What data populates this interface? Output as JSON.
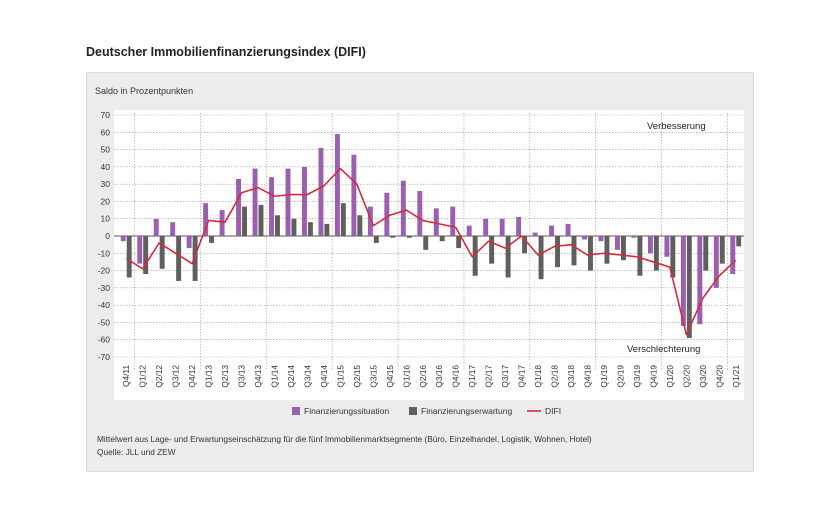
{
  "title": "Deutscher Immobilienfinanzierungsindex (DIFI)",
  "footnote": "Mittelwert aus Lage- und Erwartungseinschätzung für die fünf Immobilienmarktsegmente (Büro, Einzelhandel, Logistik, Wohnen, Hotel)",
  "source": "Quelle: JLL und ZEW",
  "colors": {
    "situation": "#9b5fb0",
    "expectation": "#5f5f5f",
    "difi": "#d62a3c",
    "plot_bg": "#ffffff",
    "panel_bg": "#ececec"
  },
  "chart_data": {
    "type": "bar",
    "ylabel": "Saldo in Prozentpunkten",
    "ylim": [
      -70,
      70
    ],
    "yticks": [
      70,
      60,
      50,
      40,
      30,
      20,
      10,
      0,
      -10,
      -20,
      -30,
      -40,
      -50,
      -60,
      -70
    ],
    "categories": [
      "Q4/11",
      "Q1/12",
      "Q2/12",
      "Q3/12",
      "Q4/12",
      "Q1/13",
      "Q2/13",
      "Q3/13",
      "Q4/13",
      "Q1/14",
      "Q2/14",
      "Q3/14",
      "Q4/14",
      "Q1/15",
      "Q2/15",
      "Q3/15",
      "Q4/15",
      "Q1/16",
      "Q2/16",
      "Q3/16",
      "Q4/16",
      "Q1/17",
      "Q2/17",
      "Q3/17",
      "Q4/17",
      "Q1/18",
      "Q2/18",
      "Q3/18",
      "Q4/18",
      "Q1/19",
      "Q2/19",
      "Q3/19",
      "Q4/19",
      "Q1/20",
      "Q2/20",
      "Q3/20",
      "Q4/20",
      "Q1/21"
    ],
    "series": [
      {
        "name": "Finanzierungssituation",
        "type": "bar",
        "values": [
          -3,
          -16,
          10,
          8,
          -7,
          19,
          15,
          33,
          39,
          34,
          39,
          40,
          51,
          59,
          47,
          17,
          25,
          32,
          26,
          16,
          17,
          6,
          10,
          10,
          11,
          2,
          6,
          7,
          -2,
          -3,
          -8,
          -1,
          -10,
          -12,
          -52,
          -51,
          -30,
          -22
        ]
      },
      {
        "name": "Finanzierungserwartung",
        "type": "bar",
        "values": [
          -24,
          -22,
          -19,
          -26,
          -26,
          -4,
          0,
          17,
          18,
          12,
          10,
          8,
          7,
          19,
          12,
          -4,
          -1,
          -1,
          -8,
          -3,
          -7,
          -23,
          -16,
          -24,
          -10,
          -25,
          -18,
          -17,
          -20,
          -16,
          -14,
          -23,
          -20,
          -24,
          -59,
          -20,
          -16,
          -6
        ]
      },
      {
        "name": "DIFI",
        "type": "line",
        "values": [
          -13,
          -19,
          -4,
          -10,
          -16,
          9,
          8,
          25,
          28,
          23,
          24,
          24,
          29,
          39,
          30,
          6,
          12,
          15,
          9,
          7,
          5,
          -12,
          -3,
          -7,
          0,
          -11,
          -6,
          -5,
          -11,
          -10,
          -11,
          -12,
          -15,
          -18,
          -57,
          -36,
          -23,
          -14
        ]
      }
    ],
    "annotations": [
      "Verbesserung",
      "Verschlechterung"
    ],
    "grid": true,
    "legend_position": "bottom"
  }
}
